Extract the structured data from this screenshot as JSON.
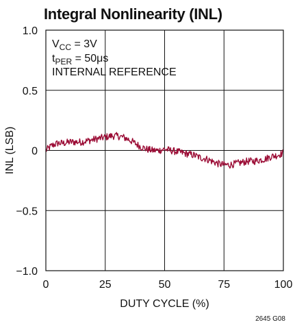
{
  "chart_data": {
    "type": "line",
    "title": "Integral Nonlinearity (INL)",
    "xlabel": "DUTY CYCLE (%)",
    "ylabel": "INL (LSB)",
    "xlim": [
      0,
      100
    ],
    "ylim": [
      -1.0,
      1.0
    ],
    "x_ticks": [
      0,
      25,
      50,
      75,
      100
    ],
    "x_tick_labels": [
      "0",
      "25",
      "50",
      "75",
      "100"
    ],
    "y_ticks": [
      1.0,
      0.5,
      0,
      -0.5,
      -1.0
    ],
    "y_tick_labels": [
      "1.0",
      "0.5",
      "0",
      "−0.5",
      "−1.0"
    ],
    "grid": true,
    "annotations": [
      {
        "main": "V",
        "sub": "CC",
        "rest": " = 3V"
      },
      {
        "main": "t",
        "sub": "PER",
        "rest": " = 50μs"
      },
      {
        "main": "INTERNAL REFERENCE",
        "sub": "",
        "rest": ""
      }
    ],
    "series": [
      {
        "color": "#9b0c35",
        "x": [
          0,
          2.5,
          5,
          7.5,
          10,
          12.5,
          15,
          17.5,
          20,
          22.5,
          25,
          27.5,
          30,
          32.5,
          35,
          37.5,
          40,
          42.5,
          45,
          47.5,
          50,
          52.5,
          55,
          57.5,
          60,
          62.5,
          65,
          67.5,
          70,
          72.5,
          75,
          77.5,
          80,
          82.5,
          85,
          87.5,
          90,
          92.5,
          95,
          97.5,
          100
        ],
        "values": [
          0.0,
          0.04,
          0.06,
          0.06,
          0.07,
          0.07,
          0.07,
          0.08,
          0.09,
          0.1,
          0.11,
          0.12,
          0.12,
          0.11,
          0.09,
          0.06,
          0.03,
          0.01,
          0.0,
          0.0,
          0.01,
          0.0,
          -0.01,
          -0.02,
          -0.03,
          -0.04,
          -0.06,
          -0.07,
          -0.09,
          -0.11,
          -0.12,
          -0.12,
          -0.11,
          -0.1,
          -0.09,
          -0.09,
          -0.08,
          -0.07,
          -0.05,
          -0.04,
          -0.02
        ],
        "noise_amplitude": 0.03
      }
    ]
  },
  "figure_code": "2645 G08"
}
